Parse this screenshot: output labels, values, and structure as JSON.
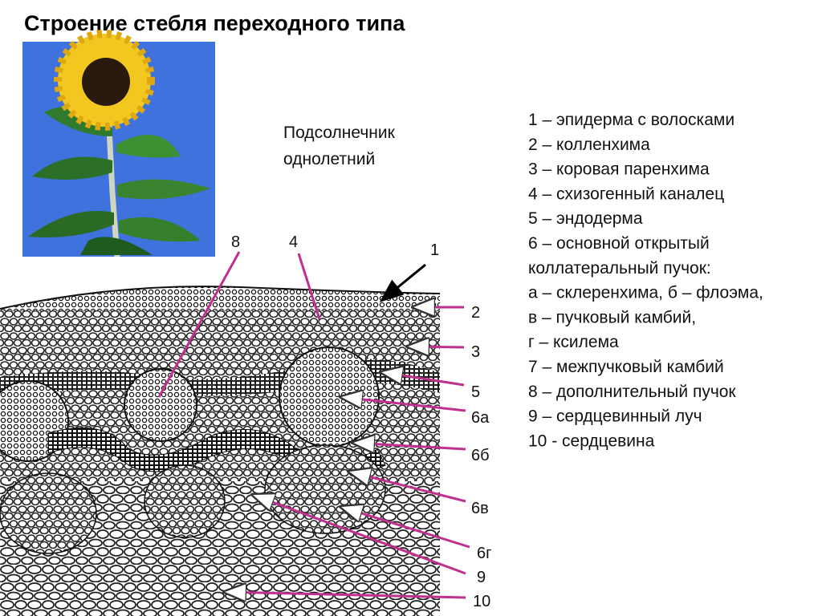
{
  "title": "Строение стебля переходного типа",
  "plant_name": [
    "Подсолнечник",
    "однолетний"
  ],
  "legend": [
    "1 – эпидерма с волосками",
    "2 – колленхима",
    "3 – коровая паренхима",
    "4 – схизогенный каналец",
    "5 – эндодерма",
    "6 – основной открытый",
    "коллатеральный пучок:",
    "а – склеренхима, б – флоэма,",
    "в – пучковый камбий,",
    "г – ксилема",
    "7 – межпучковый камбий",
    "8 – дополнительный пучок",
    "9 – сердцевинный луч",
    "10 - сердцевина"
  ],
  "labels": [
    "8",
    "4",
    "1",
    "2",
    "3",
    "5",
    "6а",
    "6б",
    "6в",
    "6г",
    "9",
    "10"
  ]
}
